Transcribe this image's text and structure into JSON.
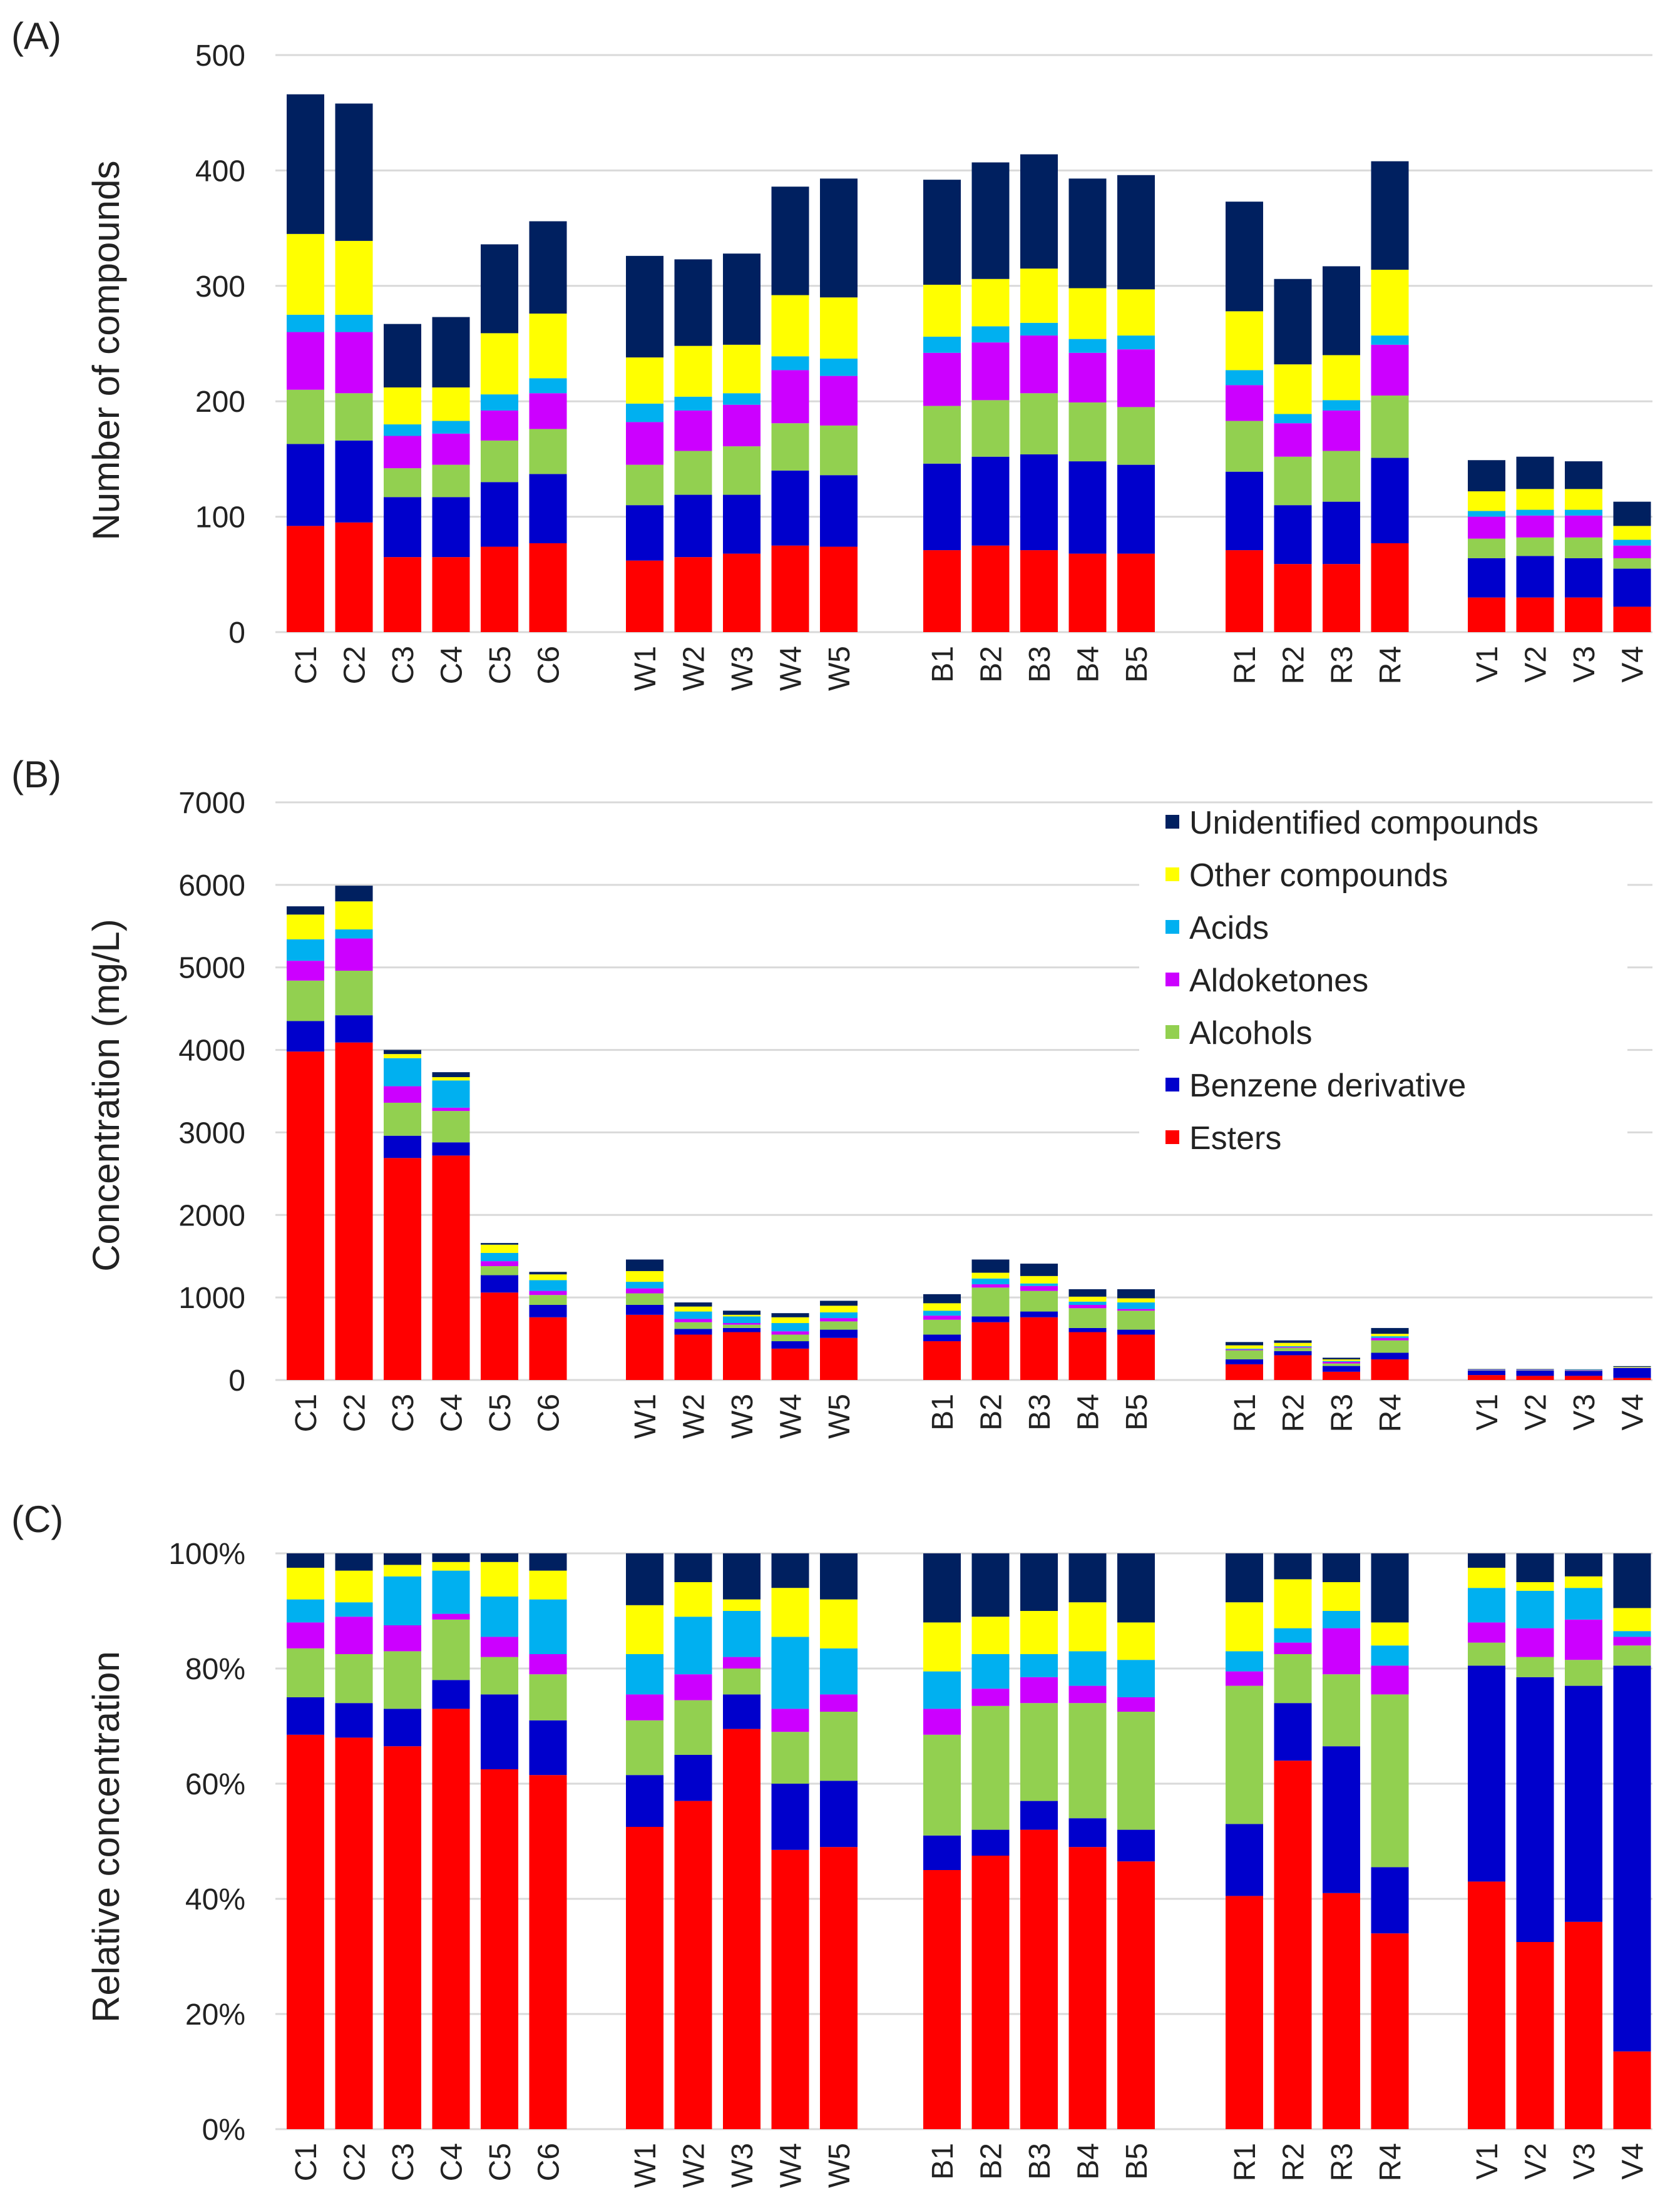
{
  "series_names": [
    "Esters",
    "Benzene derivative",
    "Alcohols",
    "Aldoketones",
    "Acids",
    "Other compounds",
    "Unidentified compounds"
  ],
  "series_colors": [
    "#ff0000",
    "#0000cc",
    "#92d050",
    "#cc00ff",
    "#00b0f0",
    "#ffff00",
    "#002060"
  ],
  "chart_data": [
    {
      "type": "bar",
      "stacked": true,
      "panel_label": "(A)",
      "ylabel": "Number of compounds",
      "ylim": [
        0,
        500
      ],
      "yticks": [
        "0",
        "100",
        "200",
        "300",
        "400",
        "500"
      ],
      "grid": true,
      "categories": [
        "C1",
        "C2",
        "C3",
        "C4",
        "C5",
        "C6",
        "W1",
        "W2",
        "W3",
        "W4",
        "W5",
        "B1",
        "B2",
        "B3",
        "B4",
        "B5",
        "R1",
        "R2",
        "R3",
        "R4",
        "V1",
        "V2",
        "V3",
        "V4"
      ],
      "series": [
        {
          "name": "Esters",
          "values": [
            92,
            95,
            65,
            65,
            74,
            77,
            62,
            65,
            68,
            75,
            74,
            71,
            75,
            71,
            68,
            68,
            71,
            59,
            59,
            77,
            30,
            30,
            30,
            22
          ]
        },
        {
          "name": "Benzene derivative",
          "values": [
            71,
            71,
            52,
            52,
            56,
            60,
            48,
            54,
            51,
            65,
            62,
            75,
            77,
            83,
            80,
            77,
            68,
            51,
            54,
            74,
            34,
            36,
            34,
            33
          ]
        },
        {
          "name": "Alcohols",
          "values": [
            47,
            41,
            25,
            28,
            36,
            39,
            35,
            38,
            42,
            41,
            43,
            50,
            49,
            53,
            51,
            50,
            44,
            42,
            44,
            54,
            17,
            16,
            18,
            9
          ]
        },
        {
          "name": "Aldoketones",
          "values": [
            50,
            53,
            28,
            27,
            26,
            31,
            37,
            35,
            36,
            46,
            43,
            46,
            50,
            50,
            43,
            50,
            31,
            29,
            35,
            44,
            19,
            19,
            19,
            11
          ]
        },
        {
          "name": "Acids",
          "values": [
            15,
            15,
            10,
            11,
            14,
            13,
            16,
            12,
            10,
            12,
            15,
            14,
            14,
            11,
            12,
            12,
            13,
            8,
            9,
            8,
            5,
            5,
            5,
            5
          ]
        },
        {
          "name": "Other compounds",
          "values": [
            70,
            64,
            32,
            29,
            53,
            56,
            40,
            44,
            42,
            53,
            53,
            45,
            41,
            47,
            44,
            40,
            51,
            43,
            39,
            57,
            17,
            18,
            18,
            12
          ]
        },
        {
          "name": "Unidentified compounds",
          "values": [
            121,
            119,
            55,
            61,
            77,
            80,
            88,
            75,
            79,
            94,
            103,
            91,
            101,
            99,
            95,
            99,
            95,
            74,
            77,
            94,
            27,
            28,
            24,
            21
          ]
        }
      ]
    },
    {
      "type": "bar",
      "stacked": true,
      "panel_label": "(B)",
      "ylabel": "Concentration  (mg/L)",
      "ylim": [
        0,
        7000
      ],
      "yticks": [
        "0",
        "1000",
        "2000",
        "3000",
        "4000",
        "5000",
        "6000",
        "7000"
      ],
      "grid": true,
      "legend_position": "top-right",
      "categories": [
        "C1",
        "C2",
        "C3",
        "C4",
        "C5",
        "C6",
        "W1",
        "W2",
        "W3",
        "W4",
        "W5",
        "B1",
        "B2",
        "B3",
        "B4",
        "B5",
        "R1",
        "R2",
        "R3",
        "R4",
        "V1",
        "V2",
        "V3",
        "V4"
      ],
      "series": [
        {
          "name": "Esters",
          "values": [
            3980,
            4090,
            2690,
            2720,
            1060,
            760,
            790,
            550,
            580,
            380,
            510,
            470,
            700,
            760,
            580,
            550,
            190,
            300,
            100,
            250,
            60,
            50,
            50,
            25
          ]
        },
        {
          "name": "Benzene derivative",
          "values": [
            370,
            330,
            270,
            160,
            210,
            150,
            120,
            70,
            50,
            90,
            100,
            80,
            70,
            70,
            50,
            60,
            60,
            50,
            70,
            80,
            55,
            65,
            60,
            120
          ]
        },
        {
          "name": "Alcohols",
          "values": [
            490,
            540,
            400,
            380,
            110,
            120,
            140,
            80,
            40,
            80,
            100,
            180,
            350,
            250,
            240,
            230,
            110,
            40,
            30,
            150,
            5,
            5,
            5,
            5
          ]
        },
        {
          "name": "Aldoketones",
          "values": [
            240,
            390,
            200,
            40,
            60,
            50,
            60,
            40,
            20,
            40,
            40,
            50,
            40,
            60,
            40,
            20,
            10,
            10,
            20,
            30,
            5,
            5,
            5,
            2
          ]
        },
        {
          "name": "Acids",
          "values": [
            260,
            110,
            340,
            330,
            100,
            130,
            80,
            90,
            80,
            100,
            70,
            60,
            70,
            30,
            40,
            80,
            10,
            10,
            10,
            20,
            5,
            5,
            5,
            2
          ]
        },
        {
          "name": "Other compounds",
          "values": [
            300,
            340,
            50,
            40,
            100,
            70,
            130,
            60,
            20,
            70,
            80,
            90,
            70,
            90,
            60,
            50,
            40,
            40,
            20,
            30,
            2,
            2,
            2,
            5
          ]
        },
        {
          "name": "Unidentified compounds",
          "values": [
            100,
            190,
            50,
            60,
            20,
            30,
            140,
            50,
            50,
            50,
            60,
            110,
            160,
            150,
            90,
            110,
            40,
            30,
            20,
            70,
            3,
            3,
            3,
            9
          ]
        }
      ]
    },
    {
      "type": "bar",
      "stacked": true,
      "panel_label": "(C)",
      "ylabel": "Relative concentration",
      "ylim": [
        0,
        100
      ],
      "yticks": [
        "0%",
        "20%",
        "40%",
        "60%",
        "80%",
        "100%"
      ],
      "grid": true,
      "categories": [
        "C1",
        "C2",
        "C3",
        "C4",
        "C5",
        "C6",
        "W1",
        "W2",
        "W3",
        "W4",
        "W5",
        "B1",
        "B2",
        "B3",
        "B4",
        "B5",
        "R1",
        "R2",
        "R3",
        "R4",
        "V1",
        "V2",
        "V3",
        "V4"
      ],
      "series": [
        {
          "name": "Esters",
          "values": [
            68.5,
            68,
            66.5,
            73,
            62.5,
            61.5,
            52.5,
            57,
            69.5,
            48.5,
            49,
            45,
            47.5,
            52,
            49,
            46.5,
            40.5,
            64,
            41,
            34,
            43,
            32.5,
            36,
            13.5
          ]
        },
        {
          "name": "Benzene derivative",
          "values": [
            6.5,
            6,
            6.5,
            5,
            13,
            9.5,
            9,
            8,
            6,
            11.5,
            11.5,
            6,
            4.5,
            5,
            5,
            5.5,
            12.5,
            10,
            25.5,
            11.5,
            37.5,
            46,
            41,
            67
          ]
        },
        {
          "name": "Alcohols",
          "values": [
            8.5,
            8.5,
            10,
            10.5,
            6.5,
            8,
            9.5,
            9.5,
            4.5,
            9,
            12,
            17.5,
            21.5,
            17,
            20,
            20.5,
            24,
            8.5,
            12.5,
            30,
            4,
            3.5,
            4.5,
            3.5
          ]
        },
        {
          "name": "Aldoketones",
          "values": [
            4.5,
            6.5,
            4.5,
            1,
            3.5,
            3.5,
            4.5,
            4.5,
            2,
            4,
            3,
            4.5,
            3,
            4.5,
            3,
            2.5,
            2.5,
            2,
            8,
            5,
            3.5,
            5,
            7,
            1.5
          ]
        },
        {
          "name": "Acids",
          "values": [
            4,
            2.5,
            8.5,
            7.5,
            7,
            9.5,
            7,
            10,
            8,
            12.5,
            8,
            6.5,
            6,
            4,
            6,
            6.5,
            3.5,
            2.5,
            3,
            3.5,
            6,
            6.5,
            5.5,
            1
          ]
        },
        {
          "name": "Other compounds",
          "values": [
            5.5,
            5.5,
            2,
            1.5,
            6,
            5,
            8.5,
            6,
            2,
            8.5,
            8.5,
            8.5,
            6.5,
            7.5,
            8.5,
            6.5,
            8.5,
            8.5,
            5,
            4,
            3.5,
            1.5,
            2,
            4
          ]
        },
        {
          "name": "Unidentified compounds",
          "values": [
            2.5,
            3,
            2,
            1.5,
            1.5,
            3,
            9,
            5,
            8,
            6,
            8,
            12,
            11,
            10,
            8.5,
            12,
            8.5,
            4.5,
            5,
            12,
            2.5,
            5,
            4,
            9.5
          ]
        }
      ]
    }
  ]
}
